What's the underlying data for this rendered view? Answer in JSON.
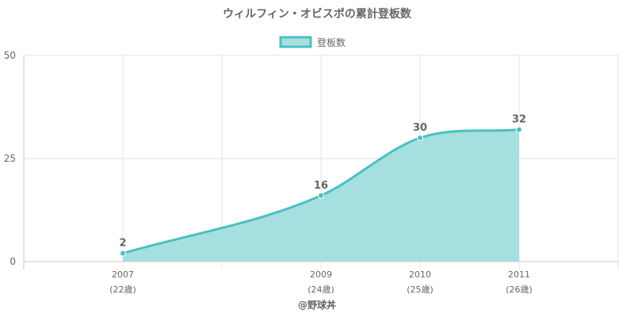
{
  "chart_data": {
    "type": "area",
    "title": "ウィルフィン・オビスポの累計登板数",
    "legend": {
      "label": "登板数",
      "position": "top-center"
    },
    "x_categories": [
      {
        "label": "2007",
        "sublabel": "(22歳)"
      },
      {
        "label": "2009",
        "sublabel": "(24歳)"
      },
      {
        "label": "2010",
        "sublabel": "(25歳)"
      },
      {
        "label": "2011",
        "sublabel": "(26歳)"
      }
    ],
    "series": [
      {
        "name": "登板数",
        "points": [
          {
            "x": 2007,
            "y": 2
          },
          {
            "x": 2009,
            "y": 16
          },
          {
            "x": 2010,
            "y": 30
          },
          {
            "x": 2011,
            "y": 32
          }
        ]
      }
    ],
    "x_range": [
      2006,
      2012
    ],
    "ylim": [
      0,
      50
    ],
    "y_ticks": [
      0,
      25,
      50
    ],
    "grid": true,
    "footer": "@野球丼",
    "colors": {
      "line": "#4bc0c0",
      "fill": "#a6dfdf",
      "grid": "#e6e6e6",
      "axis": "#c8c8c8",
      "text": "#666666"
    }
  }
}
